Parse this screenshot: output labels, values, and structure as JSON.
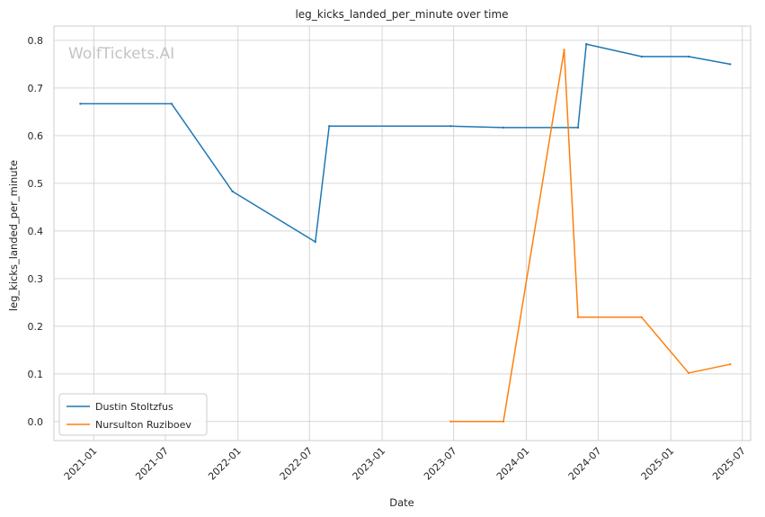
{
  "chart_data": {
    "type": "line",
    "title": "leg_kicks_landed_per_minute over time",
    "xlabel": "Date",
    "ylabel": "leg_kicks_landed_per_minute",
    "watermark": "WolfTickets.AI",
    "x_ticks": [
      "2021-01",
      "2021-07",
      "2022-01",
      "2022-07",
      "2023-01",
      "2023-07",
      "2024-01",
      "2024-07",
      "2025-01",
      "2025-07"
    ],
    "y_ticks": [
      "0.0",
      "0.1",
      "0.2",
      "0.3",
      "0.4",
      "0.5",
      "0.6",
      "0.7",
      "0.8"
    ],
    "ylim": [
      -0.04,
      0.83
    ],
    "xlim": [
      "2020-09-22",
      "2025-07-22"
    ],
    "grid": true,
    "legend_position": "lower-left",
    "series": [
      {
        "name": "Dustin Stoltzfus",
        "color": "#1f77b4",
        "points": [
          {
            "x": "2020-11-28",
            "y": 0.667
          },
          {
            "x": "2021-07-17",
            "y": 0.667
          },
          {
            "x": "2021-12-18",
            "y": 0.483
          },
          {
            "x": "2022-07-16",
            "y": 0.377
          },
          {
            "x": "2022-08-20",
            "y": 0.62
          },
          {
            "x": "2023-06-24",
            "y": 0.62
          },
          {
            "x": "2023-11-04",
            "y": 0.617
          },
          {
            "x": "2024-05-11",
            "y": 0.617
          },
          {
            "x": "2024-06-01",
            "y": 0.792
          },
          {
            "x": "2024-10-19",
            "y": 0.766
          },
          {
            "x": "2025-02-15",
            "y": 0.766
          },
          {
            "x": "2025-05-31",
            "y": 0.75
          }
        ]
      },
      {
        "name": "Nursulton Ruziboev",
        "color": "#ff7f0e",
        "points": [
          {
            "x": "2023-06-24",
            "y": 0.0
          },
          {
            "x": "2023-11-04",
            "y": 0.0
          },
          {
            "x": "2024-04-06",
            "y": 0.78
          },
          {
            "x": "2024-05-11",
            "y": 0.219
          },
          {
            "x": "2024-10-19",
            "y": 0.219
          },
          {
            "x": "2025-02-15",
            "y": 0.102
          },
          {
            "x": "2025-05-31",
            "y": 0.12
          }
        ]
      }
    ]
  }
}
